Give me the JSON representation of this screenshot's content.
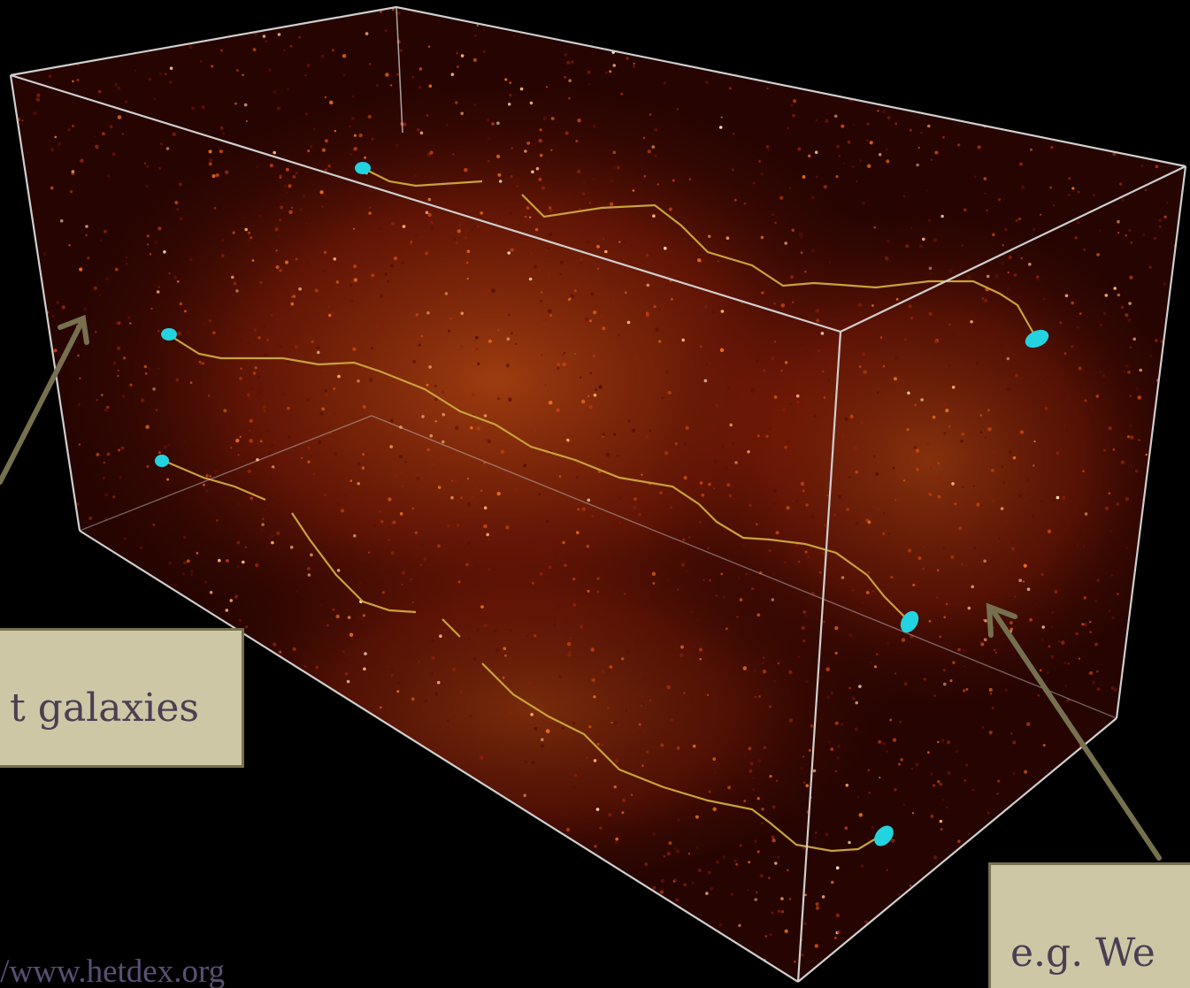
{
  "figure": {
    "description_free": true,
    "colors": {
      "background": "#000000",
      "density_low": "#3a0702",
      "density_mid": "#b8320c",
      "density_high": "#ffd9a0",
      "box_edge": "#cfcfcf",
      "light_path": "#c9a23a",
      "galaxy_marker": "#22d3e0",
      "callout_fill": "#cdc7a6",
      "callout_border": "#76704e",
      "arrow": "#76704e",
      "callout_text": "#4a3f52"
    },
    "icons": [
      "arrow-up-right-icon",
      "arrow-up-left-icon"
    ]
  },
  "labels": {
    "left_callout": "t galaxies",
    "right_callout": "e.g. We",
    "credit": "//www.hetdex.org"
  }
}
